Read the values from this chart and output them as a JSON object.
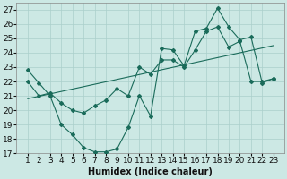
{
  "xlabel": "Humidex (Indice chaleur)",
  "background_color": "#cce8e4",
  "grid_color": "#aacfcb",
  "line_color": "#1a6b5a",
  "xlim": [
    0,
    24
  ],
  "ylim": [
    17,
    27.5
  ],
  "yticks": [
    17,
    18,
    19,
    20,
    21,
    22,
    23,
    24,
    25,
    26,
    27
  ],
  "xtick_vals": [
    1,
    2,
    3,
    4,
    5,
    6,
    7,
    8,
    9,
    10,
    11,
    12,
    13,
    14,
    15,
    16,
    17,
    18,
    19,
    20,
    21,
    22,
    23
  ],
  "series1_x": [
    1,
    2,
    3,
    4,
    5,
    6,
    7,
    8,
    9,
    10,
    11,
    12,
    13,
    14,
    15,
    16,
    17,
    18,
    19,
    20,
    21,
    22,
    23
  ],
  "series1_y": [
    22.8,
    21.9,
    21.0,
    19.0,
    18.3,
    17.4,
    17.1,
    17.1,
    17.3,
    18.8,
    21.0,
    19.6,
    24.3,
    24.2,
    23.1,
    25.5,
    25.7,
    27.1,
    25.8,
    24.9,
    25.1,
    21.9,
    22.2
  ],
  "series2_x": [
    1,
    2,
    3,
    4,
    5,
    6,
    7,
    8,
    9,
    10,
    11,
    12,
    13,
    14,
    15,
    16,
    17,
    18,
    19,
    20,
    21,
    22,
    23
  ],
  "series2_y": [
    22.0,
    21.0,
    21.2,
    20.5,
    20.0,
    19.8,
    20.3,
    20.7,
    21.5,
    21.0,
    23.0,
    22.5,
    23.5,
    23.5,
    23.0,
    24.2,
    25.5,
    25.8,
    24.4,
    24.8,
    22.0,
    22.0,
    22.2
  ],
  "series3_x": [
    1,
    23
  ],
  "series3_y": [
    20.8,
    24.5
  ],
  "font_size": 7.0
}
